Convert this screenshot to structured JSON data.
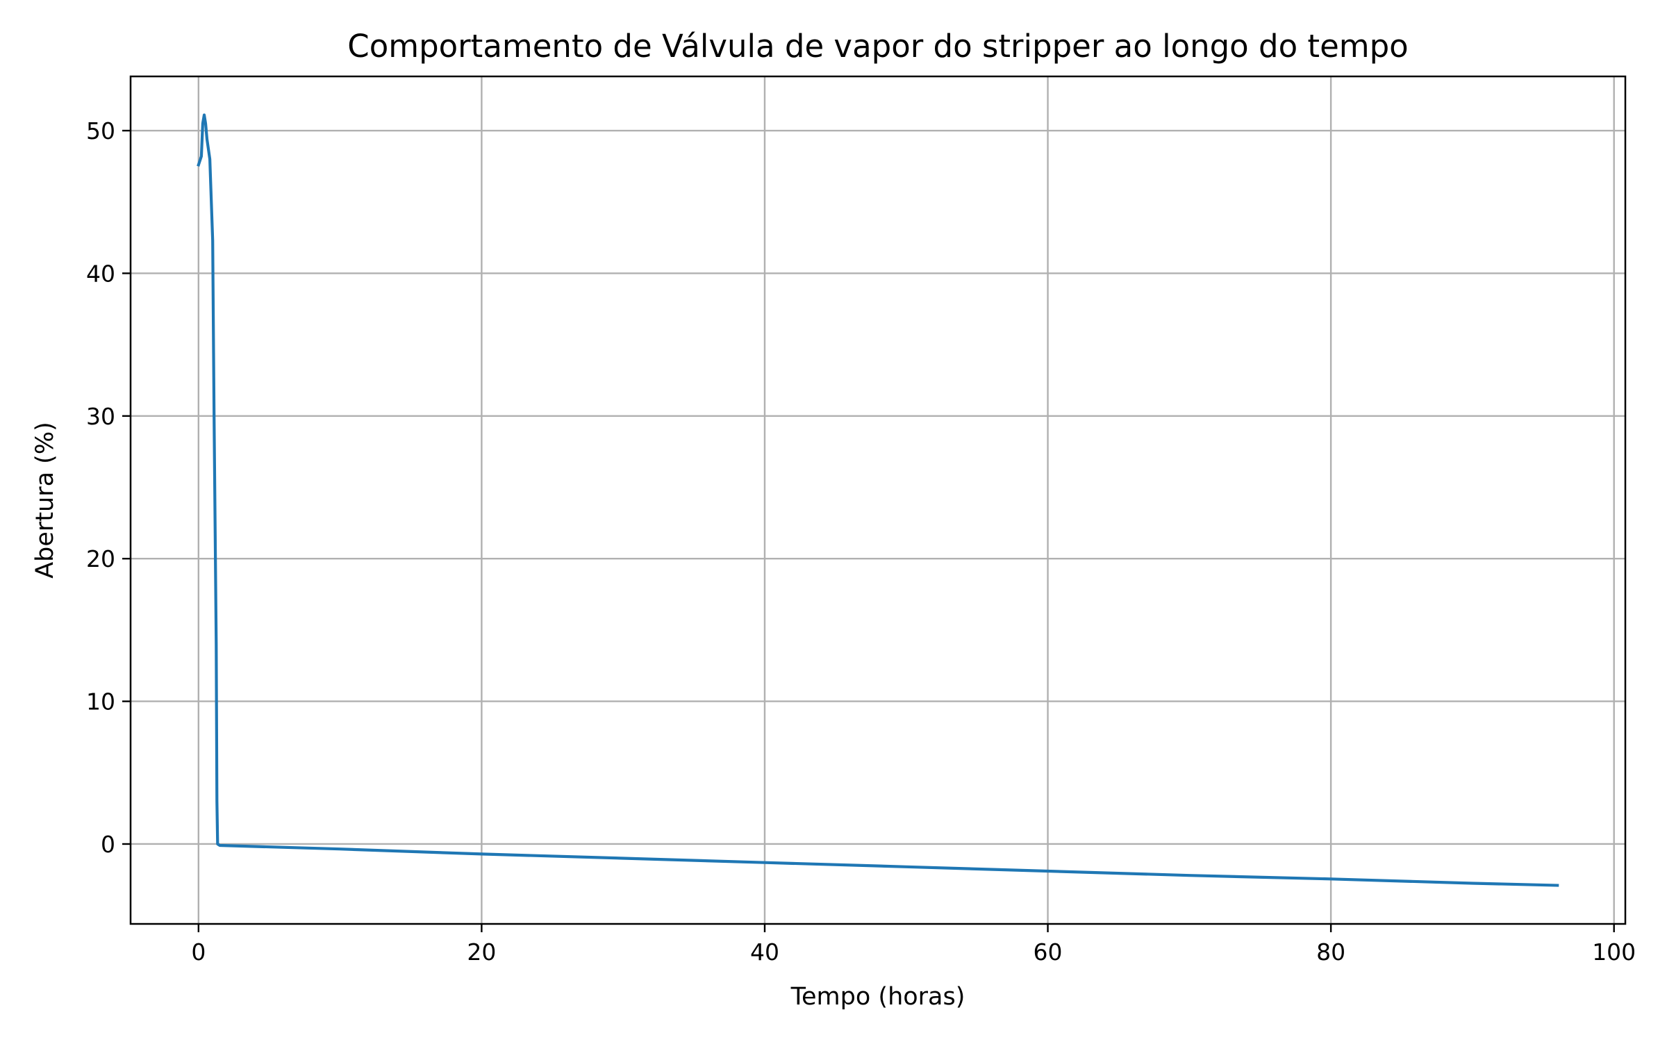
{
  "chart_data": {
    "type": "line",
    "title": "Comportamento de Válvula de vapor do stripper ao longo do tempo",
    "xlabel": "Tempo (horas)",
    "ylabel": "Abertura (%)",
    "xlim": [
      -4.8,
      100.8
    ],
    "ylim": [
      -5.6,
      53.8
    ],
    "xticks": [
      0,
      20,
      40,
      60,
      80,
      100
    ],
    "xtick_labels": [
      "0",
      "20",
      "40",
      "60",
      "80",
      "100"
    ],
    "yticks": [
      0,
      10,
      20,
      30,
      40,
      50
    ],
    "ytick_labels": [
      "0",
      "10",
      "20",
      "30",
      "40",
      "50"
    ],
    "grid": true,
    "legend": false,
    "series": [
      {
        "color": "#1f77b4",
        "x": [
          0.0,
          0.2,
          0.3,
          0.4,
          0.5,
          0.6,
          0.8,
          1.0,
          1.1,
          1.25,
          1.3,
          1.35,
          1.5,
          10,
          20,
          30,
          40,
          50,
          60,
          70,
          80,
          90,
          96
        ],
        "y": [
          47.6,
          48.2,
          50.5,
          51.1,
          50.5,
          49.4,
          48.0,
          42.3,
          30.0,
          14.0,
          3.0,
          0.0,
          -0.1,
          -0.35,
          -0.7,
          -1.0,
          -1.3,
          -1.6,
          -1.9,
          -2.2,
          -2.45,
          -2.75,
          -2.9
        ]
      }
    ]
  }
}
